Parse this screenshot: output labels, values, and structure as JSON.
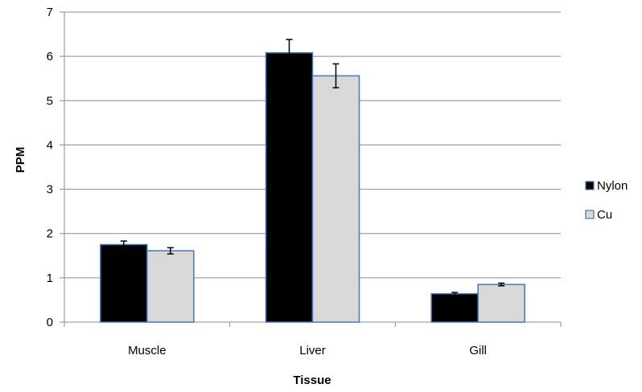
{
  "chart_data": {
    "type": "bar",
    "title": "",
    "xlabel": "Tissue",
    "ylabel": "PPM",
    "categories": [
      "Muscle",
      "Liver",
      "Gill"
    ],
    "ylim": [
      0,
      7
    ],
    "yticks": [
      0,
      1,
      2,
      3,
      4,
      5,
      6,
      7
    ],
    "grid": true,
    "legend_position": "right",
    "series": [
      {
        "name": "Nylon",
        "values": [
          1.75,
          6.08,
          0.64
        ],
        "errors": [
          0.08,
          0.3,
          0.03
        ],
        "color": "#000000",
        "stroke": "#4a76b2"
      },
      {
        "name": "Cu",
        "values": [
          1.61,
          5.56,
          0.85
        ],
        "errors": [
          0.07,
          0.27,
          0.03
        ],
        "color": "#d9d9d9",
        "stroke": "#4a76b2"
      }
    ]
  }
}
